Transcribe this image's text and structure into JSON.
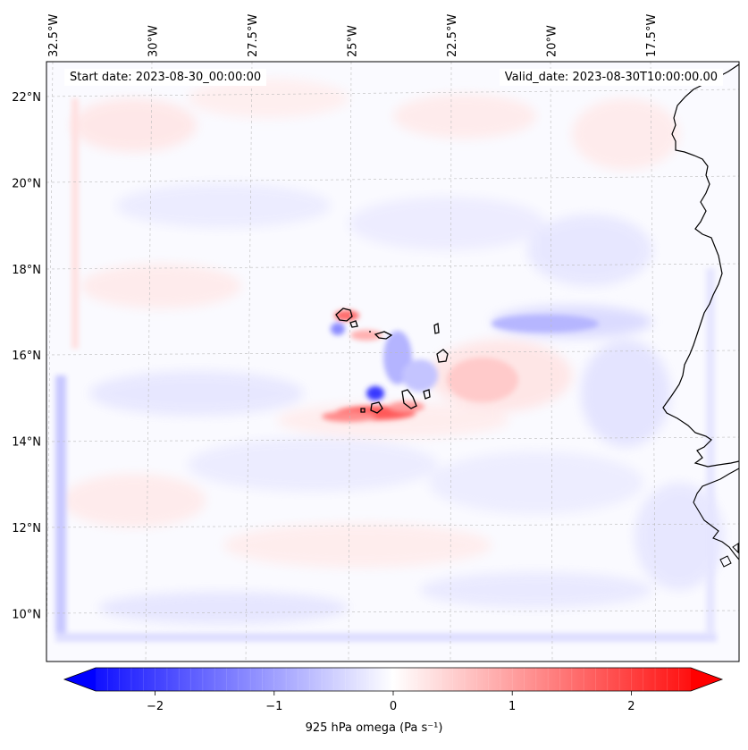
{
  "header": {
    "start_date": "Start date: 2023-08-30_00:00:00",
    "valid_date": "Valid_date: 2023-08-30T10:00:00.00"
  },
  "map": {
    "longitude_ticks": [
      {
        "value": -32.5,
        "label": "32.5°W"
      },
      {
        "value": -30.0,
        "label": "30°W"
      },
      {
        "value": -27.5,
        "label": "27.5°W"
      },
      {
        "value": -25.0,
        "label": "25°W"
      },
      {
        "value": -22.5,
        "label": "22.5°W"
      },
      {
        "value": -20.0,
        "label": "20°W"
      },
      {
        "value": -17.5,
        "label": "17.5°W"
      }
    ],
    "latitude_ticks": [
      {
        "value": 22,
        "label": "22°N"
      },
      {
        "value": 20,
        "label": "20°N"
      },
      {
        "value": 18,
        "label": "18°N"
      },
      {
        "value": 16,
        "label": "16°N"
      },
      {
        "value": 14,
        "label": "14°N"
      },
      {
        "value": 12,
        "label": "12°N"
      },
      {
        "value": 10,
        "label": "10°N"
      }
    ],
    "field_features": [
      {
        "name": "ascent-north-islands",
        "lon": -25.1,
        "lat": 16.9,
        "value": 1.6
      },
      {
        "name": "descent-north-islands",
        "lon": -24.9,
        "lat": 16.6,
        "value": -1.2
      },
      {
        "name": "descent-fogo",
        "lon": -24.4,
        "lat": 14.9,
        "value": -2.6
      },
      {
        "name": "ascent-fogo-band",
        "lon": -24.8,
        "lat": 14.6,
        "value": 2.2
      },
      {
        "name": "descent-boavista",
        "lon": -23.0,
        "lat": 15.8,
        "value": -0.9
      },
      {
        "name": "ascent-east-band",
        "lon": -21.5,
        "lat": 15.5,
        "value": 0.5
      },
      {
        "name": "descent-west-edge",
        "lon": -32.2,
        "lat": 12.0,
        "value": -0.8
      }
    ],
    "coastline_color": "#000000",
    "gridline_color": "#bbbbbb"
  },
  "colorbar": {
    "label": "925 hPa omega (Pa s⁻¹)",
    "min": -2.5,
    "max": 2.5,
    "extend": "both",
    "ticks": [
      {
        "value": -2,
        "label": "−2"
      },
      {
        "value": -1,
        "label": "−1"
      },
      {
        "value": 0,
        "label": "0"
      },
      {
        "value": 1,
        "label": "1"
      },
      {
        "value": 2,
        "label": "2"
      }
    ],
    "low_color": "#0000ff",
    "mid_color": "#ffffff",
    "high_color": "#ff0000"
  }
}
